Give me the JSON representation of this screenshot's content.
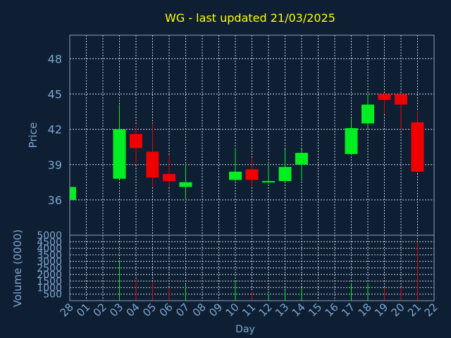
{
  "title": "WG - last updated 21/03/2025",
  "colors": {
    "background": "#0e1f33",
    "title": "#ffff00",
    "axis_text": "#7fa6d0",
    "frame": "#8c9fb8",
    "grid": "#c8d0dc",
    "up": "#00ee22",
    "down": "#ee0000"
  },
  "chart_data": [
    {
      "type": "candlestick",
      "ylabel": "Price",
      "ylim": [
        33,
        50
      ],
      "yticks": [
        36,
        39,
        42,
        45,
        48
      ],
      "grid": true,
      "candles": [
        {
          "day": "28",
          "open": 36.0,
          "high": 37.1,
          "low": 35.9,
          "close": 37.1
        },
        {
          "day": "03",
          "open": 37.8,
          "high": 44.1,
          "low": 37.8,
          "close": 42.0
        },
        {
          "day": "04",
          "open": 41.6,
          "high": 42.3,
          "low": 39.0,
          "close": 40.4
        },
        {
          "day": "05",
          "open": 40.1,
          "high": 42.5,
          "low": 37.1,
          "close": 37.9
        },
        {
          "day": "06",
          "open": 38.2,
          "high": 39.8,
          "low": 37.1,
          "close": 37.6
        },
        {
          "day": "07",
          "open": 37.1,
          "high": 39.0,
          "low": 36.0,
          "close": 37.5
        },
        {
          "day": "10",
          "open": 37.7,
          "high": 40.4,
          "low": 37.6,
          "close": 38.4
        },
        {
          "day": "11",
          "open": 38.6,
          "high": 39.6,
          "low": 37.1,
          "close": 37.7
        },
        {
          "day": "12",
          "open": 37.5,
          "high": 39.0,
          "low": 37.4,
          "close": 37.6
        },
        {
          "day": "13",
          "open": 37.6,
          "high": 40.3,
          "low": 37.5,
          "close": 38.8
        },
        {
          "day": "14",
          "open": 39.0,
          "high": 40.3,
          "low": 37.6,
          "close": 40.0
        },
        {
          "day": "17",
          "open": 39.9,
          "high": 42.9,
          "low": 39.9,
          "close": 42.1
        },
        {
          "day": "18",
          "open": 42.5,
          "high": 45.0,
          "low": 42.0,
          "close": 44.1
        },
        {
          "day": "19",
          "open": 45.0,
          "high": 45.0,
          "low": 43.3,
          "close": 44.5
        },
        {
          "day": "20",
          "open": 45.0,
          "high": 45.0,
          "low": 42.0,
          "close": 44.1
        },
        {
          "day": "21",
          "open": 42.6,
          "high": 43.6,
          "low": 38.3,
          "close": 38.4
        }
      ]
    },
    {
      "type": "bar",
      "xlabel": "Day",
      "ylabel": "Volume (0000)",
      "ylim": [
        0,
        5000
      ],
      "yticks": [
        500,
        1000,
        1500,
        2000,
        2500,
        3000,
        3500,
        4000,
        4500,
        5000
      ],
      "grid": true,
      "categories": [
        "28",
        "01",
        "02",
        "03",
        "04",
        "05",
        "06",
        "07",
        "08",
        "09",
        "10",
        "11",
        "12",
        "13",
        "14",
        "15",
        "16",
        "17",
        "18",
        "19",
        "20",
        "21",
        "22"
      ],
      "bars": [
        {
          "day": "03",
          "value": 3100,
          "color": "up"
        },
        {
          "day": "04",
          "value": 1650,
          "color": "down"
        },
        {
          "day": "05",
          "value": 1450,
          "color": "down"
        },
        {
          "day": "06",
          "value": 1000,
          "color": "down"
        },
        {
          "day": "07",
          "value": 1200,
          "color": "up"
        },
        {
          "day": "10",
          "value": 1500,
          "color": "up"
        },
        {
          "day": "11",
          "value": 700,
          "color": "down"
        },
        {
          "day": "12",
          "value": 500,
          "color": "up"
        },
        {
          "day": "13",
          "value": 800,
          "color": "up"
        },
        {
          "day": "14",
          "value": 950,
          "color": "up"
        },
        {
          "day": "17",
          "value": 1350,
          "color": "up"
        },
        {
          "day": "18",
          "value": 1350,
          "color": "up"
        },
        {
          "day": "19",
          "value": 1000,
          "color": "down"
        },
        {
          "day": "20",
          "value": 1000,
          "color": "down"
        },
        {
          "day": "21",
          "value": 4500,
          "color": "down"
        }
      ]
    }
  ]
}
